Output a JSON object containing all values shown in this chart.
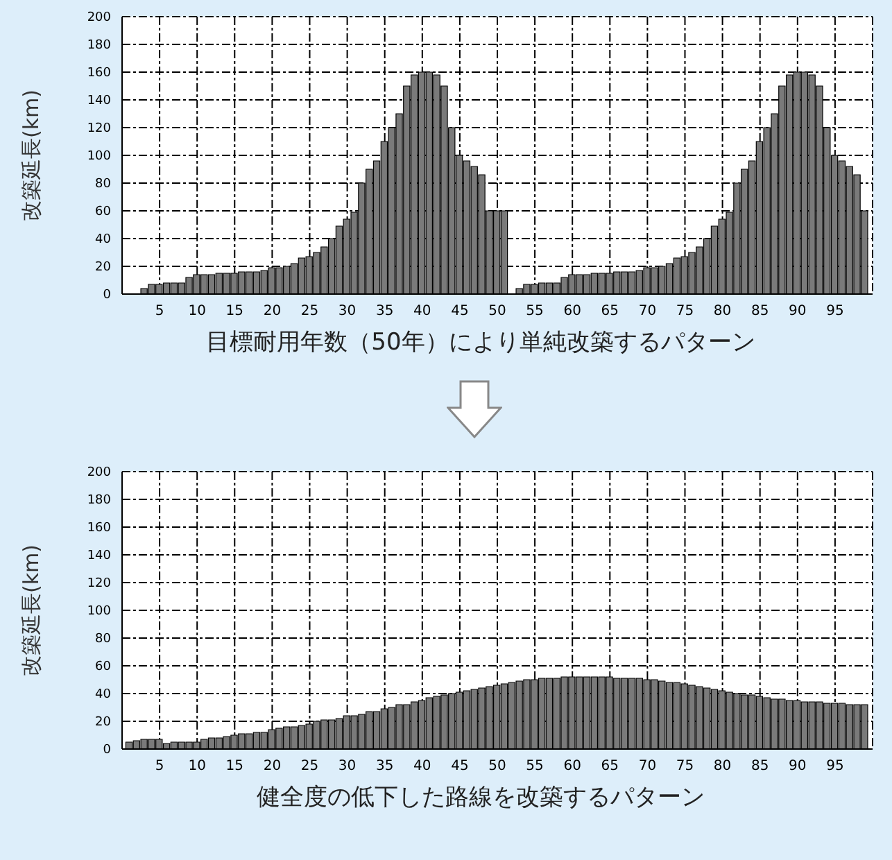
{
  "chart_data": [
    {
      "type": "bar",
      "ylabel": "改築延長(km)",
      "xlabel": "目標耐用年数（50年）により単純改築するパターン",
      "color": "#7a7a7a",
      "x": [
        3,
        4,
        5,
        6,
        7,
        8,
        9,
        10,
        11,
        12,
        13,
        14,
        15,
        16,
        17,
        18,
        19,
        20,
        21,
        22,
        23,
        24,
        25,
        26,
        27,
        28,
        29,
        30,
        31,
        32,
        33,
        34,
        35,
        36,
        37,
        38,
        39,
        40,
        41,
        42,
        43,
        44,
        45,
        46,
        47,
        48,
        49,
        50,
        51,
        53,
        54,
        55,
        56,
        57,
        58,
        59,
        60,
        61,
        62,
        63,
        64,
        65,
        66,
        67,
        68,
        69,
        70,
        71,
        72,
        73,
        74,
        75,
        76,
        77,
        78,
        79,
        80,
        81,
        82,
        83,
        84,
        85,
        86,
        87,
        88,
        89,
        90,
        91,
        92,
        93,
        94,
        95,
        96,
        97,
        98,
        99
      ],
      "values": [
        4,
        7,
        7,
        8,
        8,
        8,
        12,
        14,
        14,
        14,
        15,
        15,
        15,
        16,
        16,
        16,
        17,
        19,
        19,
        20,
        22,
        26,
        27,
        30,
        34,
        40,
        49,
        54,
        59,
        80,
        90,
        96,
        110,
        120,
        130,
        150,
        158,
        160,
        160,
        158,
        150,
        120,
        100,
        96,
        92,
        86,
        60,
        60,
        60,
        4,
        7,
        7,
        8,
        8,
        8,
        12,
        14,
        14,
        14,
        15,
        15,
        15,
        16,
        16,
        16,
        17,
        19,
        19,
        20,
        22,
        26,
        27,
        30,
        34,
        40,
        49,
        54,
        59,
        80,
        90,
        96,
        110,
        120,
        130,
        150,
        158,
        160,
        160,
        158,
        150,
        120,
        100,
        96,
        92,
        86,
        60
      ],
      "xlim": [
        0,
        100
      ],
      "xticks": [
        5,
        10,
        15,
        20,
        25,
        30,
        35,
        40,
        45,
        50,
        55,
        60,
        65,
        70,
        75,
        80,
        85,
        90,
        95
      ],
      "ylim": [
        0,
        200
      ],
      "yticks": [
        0,
        20,
        40,
        60,
        80,
        100,
        120,
        140,
        160,
        180,
        200
      ],
      "grid": true
    },
    {
      "type": "bar",
      "ylabel": "改築延長(km)",
      "xlabel": "健全度の低下した路線を改築するパターン",
      "color": "#7a7a7a",
      "x": [
        1,
        2,
        3,
        4,
        5,
        6,
        7,
        8,
        9,
        10,
        11,
        12,
        13,
        14,
        15,
        16,
        17,
        18,
        19,
        20,
        21,
        22,
        23,
        24,
        25,
        26,
        27,
        28,
        29,
        30,
        31,
        32,
        33,
        34,
        35,
        36,
        37,
        38,
        39,
        40,
        41,
        42,
        43,
        44,
        45,
        46,
        47,
        48,
        49,
        50,
        51,
        52,
        53,
        54,
        55,
        56,
        57,
        58,
        59,
        60,
        61,
        62,
        63,
        64,
        65,
        66,
        67,
        68,
        69,
        70,
        71,
        72,
        73,
        74,
        75,
        76,
        77,
        78,
        79,
        80,
        81,
        82,
        83,
        84,
        85,
        86,
        87,
        88,
        89,
        90,
        91,
        92,
        93,
        94,
        95,
        96,
        97,
        98,
        99
      ],
      "values": [
        5,
        6,
        7,
        7,
        7,
        4,
        5,
        5,
        5,
        5,
        7,
        8,
        8,
        9,
        10,
        11,
        11,
        12,
        12,
        14,
        15,
        16,
        16,
        17,
        18,
        20,
        21,
        21,
        22,
        24,
        24,
        25,
        27,
        27,
        29,
        30,
        32,
        32,
        34,
        35,
        37,
        38,
        39,
        40,
        41,
        42,
        43,
        44,
        45,
        46,
        47,
        48,
        49,
        50,
        50,
        51,
        51,
        51,
        52,
        52,
        52,
        52,
        52,
        52,
        52,
        51,
        51,
        51,
        51,
        50,
        50,
        49,
        48,
        48,
        47,
        46,
        45,
        44,
        43,
        42,
        41,
        40,
        39,
        39,
        38,
        37,
        36,
        36,
        35,
        35,
        34,
        34,
        34,
        33,
        33,
        33,
        32,
        32,
        32
      ],
      "xlim": [
        0,
        100
      ],
      "xticks": [
        5,
        10,
        15,
        20,
        25,
        30,
        35,
        40,
        45,
        50,
        55,
        60,
        65,
        70,
        75,
        80,
        85,
        90,
        95
      ],
      "ylim": [
        0,
        200
      ],
      "yticks": [
        0,
        20,
        40,
        60,
        80,
        100,
        120,
        140,
        160,
        180,
        200
      ],
      "grid": true
    }
  ]
}
